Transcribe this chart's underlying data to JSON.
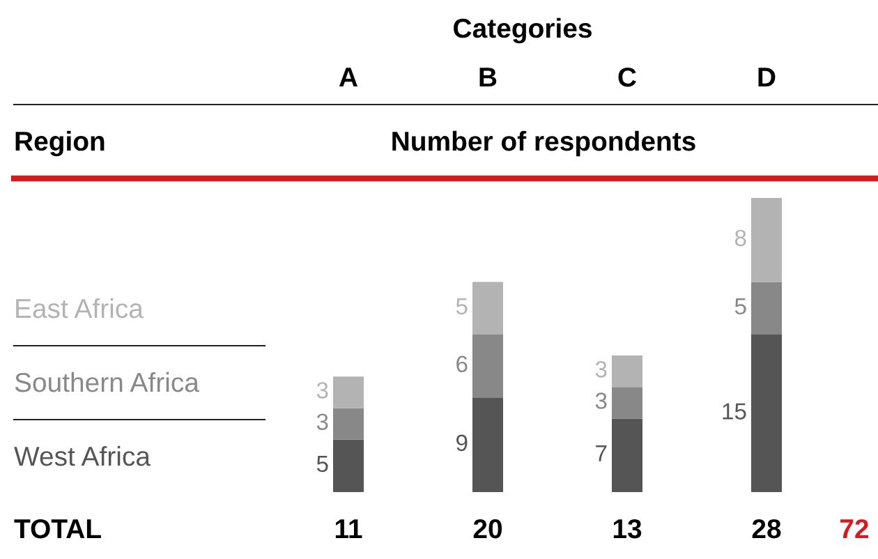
{
  "chart_data": {
    "type": "bar",
    "stacked": true,
    "title": "Categories",
    "subtitle": "Number of respondents",
    "legend_title": "Region",
    "legend": "left",
    "data_labels": true,
    "categories": [
      "A",
      "B",
      "C",
      "D"
    ],
    "series": [
      {
        "name": "West Africa",
        "color": "#555555",
        "values": [
          5,
          9,
          7,
          15
        ]
      },
      {
        "name": "Southern Africa",
        "color": "#888888",
        "values": [
          3,
          6,
          3,
          5
        ]
      },
      {
        "name": "East Africa",
        "color": "#b3b3b3",
        "values": [
          3,
          5,
          3,
          8
        ]
      }
    ],
    "totals": [
      "11",
      "20",
      "13",
      "28"
    ],
    "annotations": [
      "TOTAL",
      "72"
    ]
  }
}
